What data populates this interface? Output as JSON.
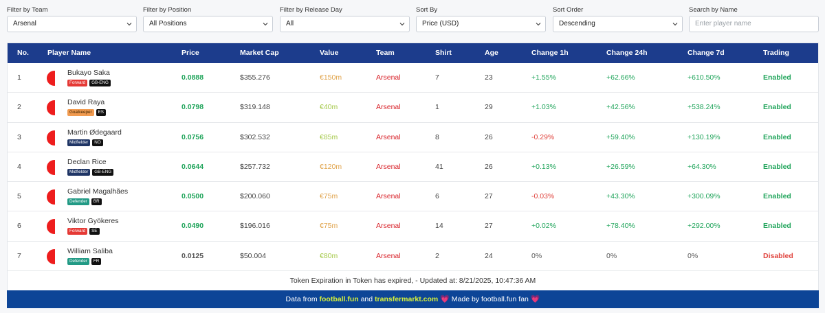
{
  "filters": {
    "team": {
      "label": "Filter by Team",
      "value": "Arsenal"
    },
    "position": {
      "label": "Filter by Position",
      "value": "All Positions"
    },
    "release_day": {
      "label": "Filter by Release Day",
      "value": "All"
    },
    "sort_by": {
      "label": "Sort By",
      "value": "Price (USD)"
    },
    "sort_order": {
      "label": "Sort Order",
      "value": "Descending"
    },
    "search": {
      "label": "Search by Name",
      "placeholder": "Enter player name"
    }
  },
  "table": {
    "headers": [
      "No.",
      "Player Name",
      "Price",
      "Market Cap",
      "Value",
      "Team",
      "Shirt",
      "Age",
      "Change 1h",
      "Change 24h",
      "Change 7d",
      "Trading"
    ],
    "rows": [
      {
        "no": "1",
        "name": "Bukayo Saka",
        "position": "Forward",
        "nationality": "GB-ENG",
        "price": "0.0888",
        "market_cap": "$355.276",
        "value": "€150m",
        "team": "Arsenal",
        "shirt": "7",
        "age": "23",
        "change_1h": "+1.55%",
        "change_24h": "+62.66%",
        "change_7d": "+610.50%",
        "trading": "Enabled"
      },
      {
        "no": "2",
        "name": "David Raya",
        "position": "Goalkeeper",
        "nationality": "ES",
        "price": "0.0798",
        "market_cap": "$319.148",
        "value": "€40m",
        "team": "Arsenal",
        "shirt": "1",
        "age": "29",
        "change_1h": "+1.03%",
        "change_24h": "+42.56%",
        "change_7d": "+538.24%",
        "trading": "Enabled"
      },
      {
        "no": "3",
        "name": "Martin Ødegaard",
        "position": "Midfielder",
        "nationality": "NO",
        "price": "0.0756",
        "market_cap": "$302.532",
        "value": "€85m",
        "team": "Arsenal",
        "shirt": "8",
        "age": "26",
        "change_1h": "-0.29%",
        "change_24h": "+59.40%",
        "change_7d": "+130.19%",
        "trading": "Enabled"
      },
      {
        "no": "4",
        "name": "Declan Rice",
        "position": "Midfielder",
        "nationality": "GB-ENG",
        "price": "0.0644",
        "market_cap": "$257.732",
        "value": "€120m",
        "team": "Arsenal",
        "shirt": "41",
        "age": "26",
        "change_1h": "+0.13%",
        "change_24h": "+26.59%",
        "change_7d": "+64.30%",
        "trading": "Enabled"
      },
      {
        "no": "5",
        "name": "Gabriel Magalhães",
        "position": "Defender",
        "nationality": "BR",
        "price": "0.0500",
        "market_cap": "$200.060",
        "value": "€75m",
        "team": "Arsenal",
        "shirt": "6",
        "age": "27",
        "change_1h": "-0.03%",
        "change_24h": "+43.30%",
        "change_7d": "+300.09%",
        "trading": "Enabled"
      },
      {
        "no": "6",
        "name": "Viktor Gyökeres",
        "position": "Forward",
        "nationality": "SE",
        "price": "0.0490",
        "market_cap": "$196.016",
        "value": "€75m",
        "team": "Arsenal",
        "shirt": "14",
        "age": "27",
        "change_1h": "+0.02%",
        "change_24h": "+78.40%",
        "change_7d": "+292.00%",
        "trading": "Enabled"
      },
      {
        "no": "7",
        "name": "William Saliba",
        "position": "Defender",
        "nationality": "FR",
        "price": "0.0125",
        "market_cap": "$50.004",
        "value": "€80m",
        "team": "Arsenal",
        "shirt": "2",
        "age": "24",
        "change_1h": "0%",
        "change_24h": "0%",
        "change_7d": "0%",
        "trading": "Disabled"
      }
    ]
  },
  "expiry_text": "Token Expiration in Token has expired, - Updated at: 8/21/2025, 10:47:36 AM",
  "footer": {
    "prefix": "Data from",
    "link1": "football.fun",
    "conj": "and",
    "link2": "transfermarkt.com",
    "heart": "💗",
    "made_by": "Made by football.fun fan"
  },
  "icons": {
    "select_arrow": "chevron-down-icon",
    "team_logo": "arsenal-crest-icon"
  },
  "colors": {
    "header_bg": "#1c3c8c",
    "footer_bg": "#0d4597",
    "positive": "#1fa45a",
    "negative": "#e0443e",
    "team": "#d8232a"
  }
}
